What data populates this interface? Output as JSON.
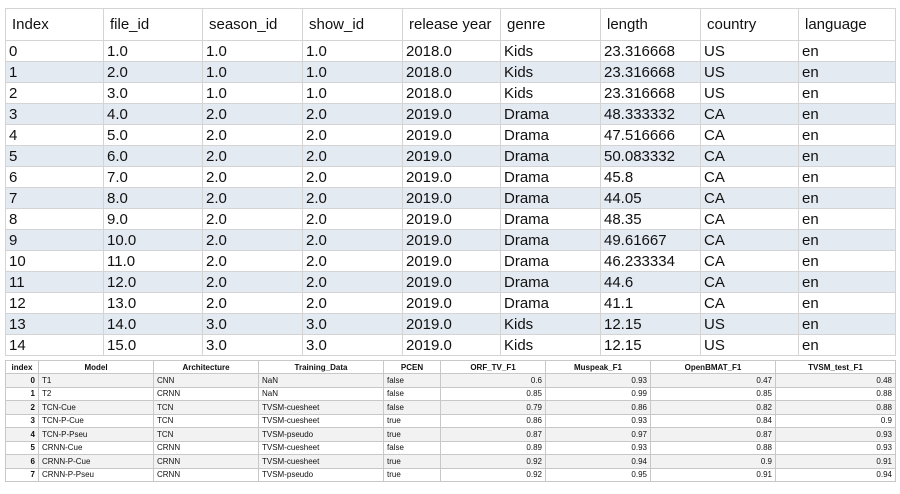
{
  "table1": {
    "columns": [
      "Index",
      "file_id",
      "season_id",
      "show_id",
      "release year",
      "genre",
      "length",
      "country",
      "language"
    ],
    "rows": [
      [
        "0",
        "1.0",
        "1.0",
        "1.0",
        "2018.0",
        "Kids",
        "23.316668",
        "US",
        "en"
      ],
      [
        "1",
        "2.0",
        "1.0",
        "1.0",
        "2018.0",
        "Kids",
        "23.316668",
        "US",
        "en"
      ],
      [
        "2",
        "3.0",
        "1.0",
        "1.0",
        "2018.0",
        "Kids",
        "23.316668",
        "US",
        "en"
      ],
      [
        "3",
        "4.0",
        "2.0",
        "2.0",
        "2019.0",
        "Drama",
        "48.333332",
        "CA",
        "en"
      ],
      [
        "4",
        "5.0",
        "2.0",
        "2.0",
        "2019.0",
        "Drama",
        "47.516666",
        "CA",
        "en"
      ],
      [
        "5",
        "6.0",
        "2.0",
        "2.0",
        "2019.0",
        "Drama",
        "50.083332",
        "CA",
        "en"
      ],
      [
        "6",
        "7.0",
        "2.0",
        "2.0",
        "2019.0",
        "Drama",
        "45.8",
        "CA",
        "en"
      ],
      [
        "7",
        "8.0",
        "2.0",
        "2.0",
        "2019.0",
        "Drama",
        "44.05",
        "CA",
        "en"
      ],
      [
        "8",
        "9.0",
        "2.0",
        "2.0",
        "2019.0",
        "Drama",
        "48.35",
        "CA",
        "en"
      ],
      [
        "9",
        "10.0",
        "2.0",
        "2.0",
        "2019.0",
        "Drama",
        "49.61667",
        "CA",
        "en"
      ],
      [
        "10",
        "11.0",
        "2.0",
        "2.0",
        "2019.0",
        "Drama",
        "46.233334",
        "CA",
        "en"
      ],
      [
        "11",
        "12.0",
        "2.0",
        "2.0",
        "2019.0",
        "Drama",
        "44.6",
        "CA",
        "en"
      ],
      [
        "12",
        "13.0",
        "2.0",
        "2.0",
        "2019.0",
        "Drama",
        "41.1",
        "CA",
        "en"
      ],
      [
        "13",
        "14.0",
        "3.0",
        "3.0",
        "2019.0",
        "Kids",
        "12.15",
        "US",
        "en"
      ],
      [
        "14",
        "15.0",
        "3.0",
        "3.0",
        "2019.0",
        "Kids",
        "12.15",
        "US",
        "en"
      ]
    ]
  },
  "table2": {
    "columns": [
      "index",
      "Model",
      "Architecture",
      "Training_Data",
      "PCEN",
      "ORF_TV_F1",
      "Muspeak_F1",
      "OpenBMAT_F1",
      "TVSM_test_F1"
    ],
    "rows": [
      [
        "0",
        "T1",
        "CNN",
        "NaN",
        "false",
        "0.6",
        "0.93",
        "0.47",
        "0.48"
      ],
      [
        "1",
        "T2",
        "CRNN",
        "NaN",
        "false",
        "0.85",
        "0.99",
        "0.85",
        "0.88"
      ],
      [
        "2",
        "TCN-Cue",
        "TCN",
        "TVSM-cuesheet",
        "false",
        "0.79",
        "0.86",
        "0.82",
        "0.88"
      ],
      [
        "3",
        "TCN-P-Cue",
        "TCN",
        "TVSM-cuesheet",
        "true",
        "0.86",
        "0.93",
        "0.84",
        "0.9"
      ],
      [
        "4",
        "TCN-P-Pseu",
        "TCN",
        "TVSM-pseudo",
        "true",
        "0.87",
        "0.97",
        "0.87",
        "0.93"
      ],
      [
        "5",
        "CRNN-Cue",
        "CRNN",
        "TVSM-cuesheet",
        "false",
        "0.89",
        "0.93",
        "0.88",
        "0.93"
      ],
      [
        "6",
        "CRNN-P-Cue",
        "CRNN",
        "TVSM-cuesheet",
        "true",
        "0.92",
        "0.94",
        "0.9",
        "0.91"
      ],
      [
        "7",
        "CRNN-P-Pseu",
        "CRNN",
        "TVSM-pseudo",
        "true",
        "0.92",
        "0.95",
        "0.91",
        "0.94"
      ]
    ]
  }
}
